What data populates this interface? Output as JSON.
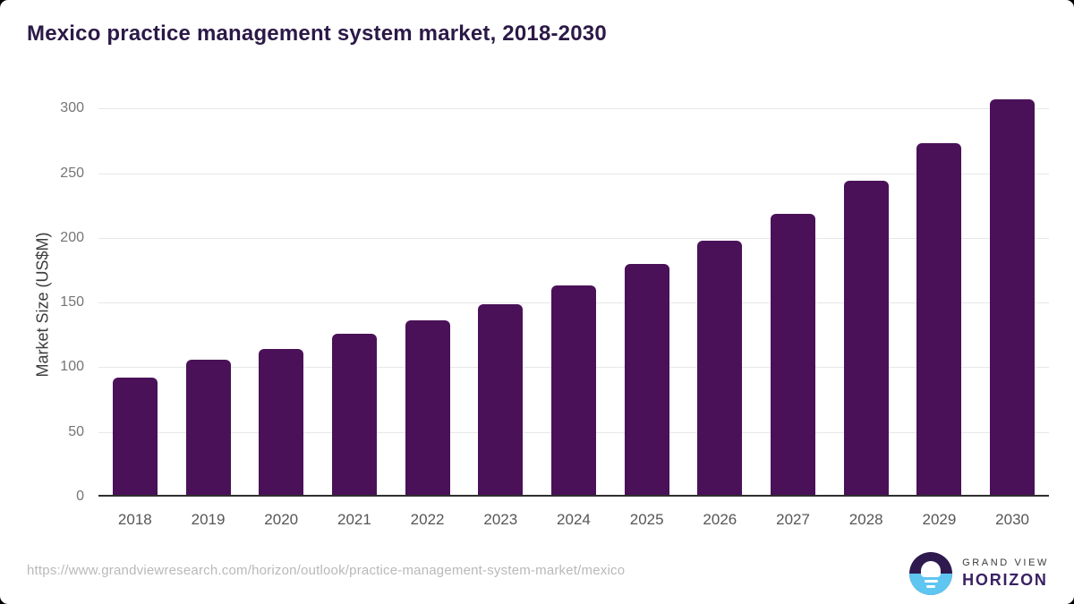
{
  "page": {
    "title": "Mexico practice management system market, 2018-2030"
  },
  "chart_data": {
    "type": "bar",
    "title": "Mexico practice management system market, 2018-2030",
    "categories": [
      "2018",
      "2019",
      "2020",
      "2021",
      "2022",
      "2023",
      "2024",
      "2025",
      "2026",
      "2027",
      "2028",
      "2029",
      "2030"
    ],
    "values": [
      92,
      106,
      114,
      126,
      136,
      149,
      163,
      180,
      198,
      219,
      244,
      273,
      307
    ],
    "xlabel": "",
    "ylabel": "Market Size (US$M)",
    "ylim": [
      0,
      310
    ],
    "yticks": [
      0,
      50,
      100,
      150,
      200,
      250,
      300
    ],
    "grid": true,
    "legend": "none",
    "bar_color": "#4a1158"
  },
  "colors": {
    "title": "#2b1947",
    "bar": "#4a1158",
    "gridline": "#e7e7e7",
    "axis_line": "#2f2f2f",
    "y_tick_text": "#757575",
    "x_tick_text": "#565656",
    "url_text": "#b9b9b9",
    "logo_dark": "#2e1a4e",
    "logo_blue": "#5ec6f0"
  },
  "footer": {
    "source_url": "https://www.grandviewresearch.com/horizon/outlook/practice-management-system-market/mexico",
    "logo": {
      "line1": "GRAND VIEW",
      "line2": "HORIZON"
    }
  }
}
